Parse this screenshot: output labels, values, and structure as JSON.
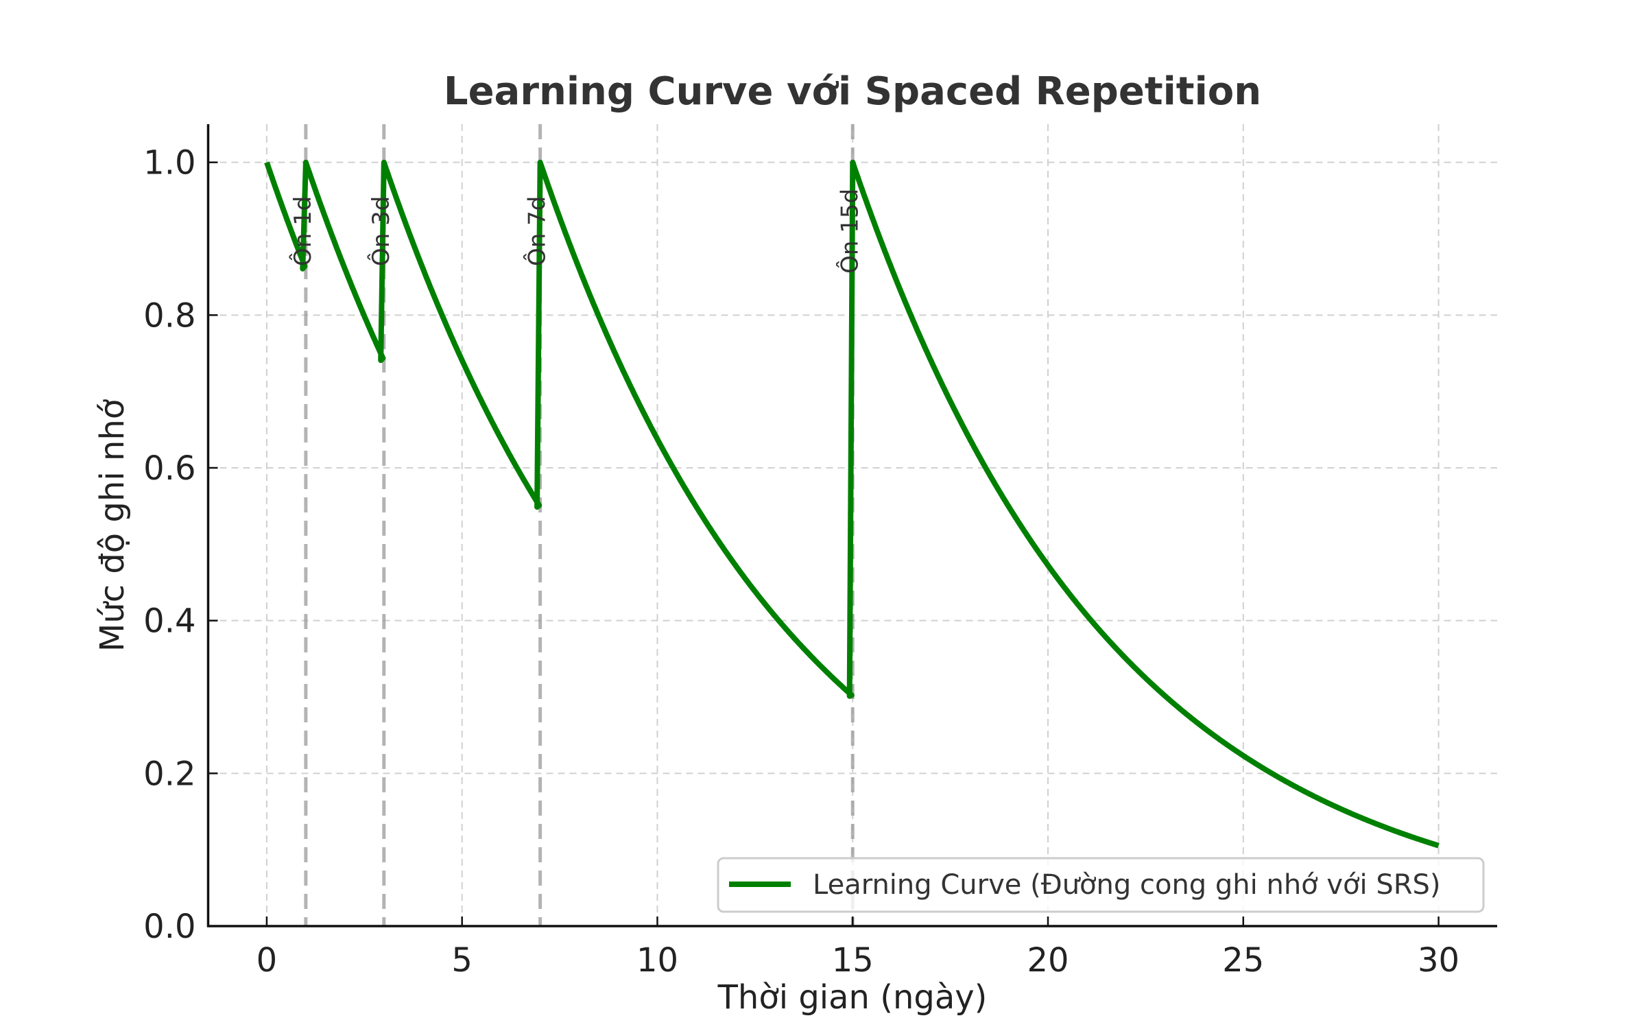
{
  "chart_data": {
    "type": "line",
    "title": "Learning Curve với Spaced Repetition",
    "xlabel": "Thời gian (ngày)",
    "ylabel": "Mức độ ghi nhớ",
    "xlim": [
      -1.5,
      31.5
    ],
    "ylim": [
      0.0,
      1.05
    ],
    "xticks": [
      0,
      5,
      10,
      15,
      20,
      25,
      30
    ],
    "xtick_labels": [
      "0",
      "5",
      "10",
      "15",
      "20",
      "25",
      "30"
    ],
    "yticks": [
      0.0,
      0.2,
      0.4,
      0.6,
      0.8,
      1.0
    ],
    "ytick_labels": [
      "0.0",
      "0.2",
      "0.4",
      "0.6",
      "0.8",
      "1.0"
    ],
    "grid": true,
    "legend_position": "bottom-right",
    "series": [
      {
        "name": "Learning Curve (Đường cong ghi nhớ với SRS)",
        "color": "#008000",
        "model": "exponential decay, resets to 1.0 at each review",
        "decay_rate_per_day": 0.15,
        "x_range": [
          0,
          30
        ],
        "key_points": [
          {
            "x": 0,
            "y": 1.0
          },
          {
            "x": 1,
            "y": 0.86
          },
          {
            "x": 1,
            "y": 1.0
          },
          {
            "x": 3,
            "y": 0.74
          },
          {
            "x": 3,
            "y": 1.0
          },
          {
            "x": 7,
            "y": 0.55
          },
          {
            "x": 7,
            "y": 1.0
          },
          {
            "x": 15,
            "y": 0.3
          },
          {
            "x": 15,
            "y": 1.0
          },
          {
            "x": 20,
            "y": 0.47
          },
          {
            "x": 25,
            "y": 0.22
          },
          {
            "x": 30,
            "y": 0.105
          }
        ]
      }
    ],
    "review_days": [
      1,
      3,
      7,
      15
    ],
    "annotations": [
      {
        "x": 1,
        "text": "Ôn 1d"
      },
      {
        "x": 3,
        "text": "Ôn 3d"
      },
      {
        "x": 7,
        "text": "Ôn 7d"
      },
      {
        "x": 15,
        "text": "Ôn 15d"
      }
    ],
    "review_line_color": "#999999"
  }
}
